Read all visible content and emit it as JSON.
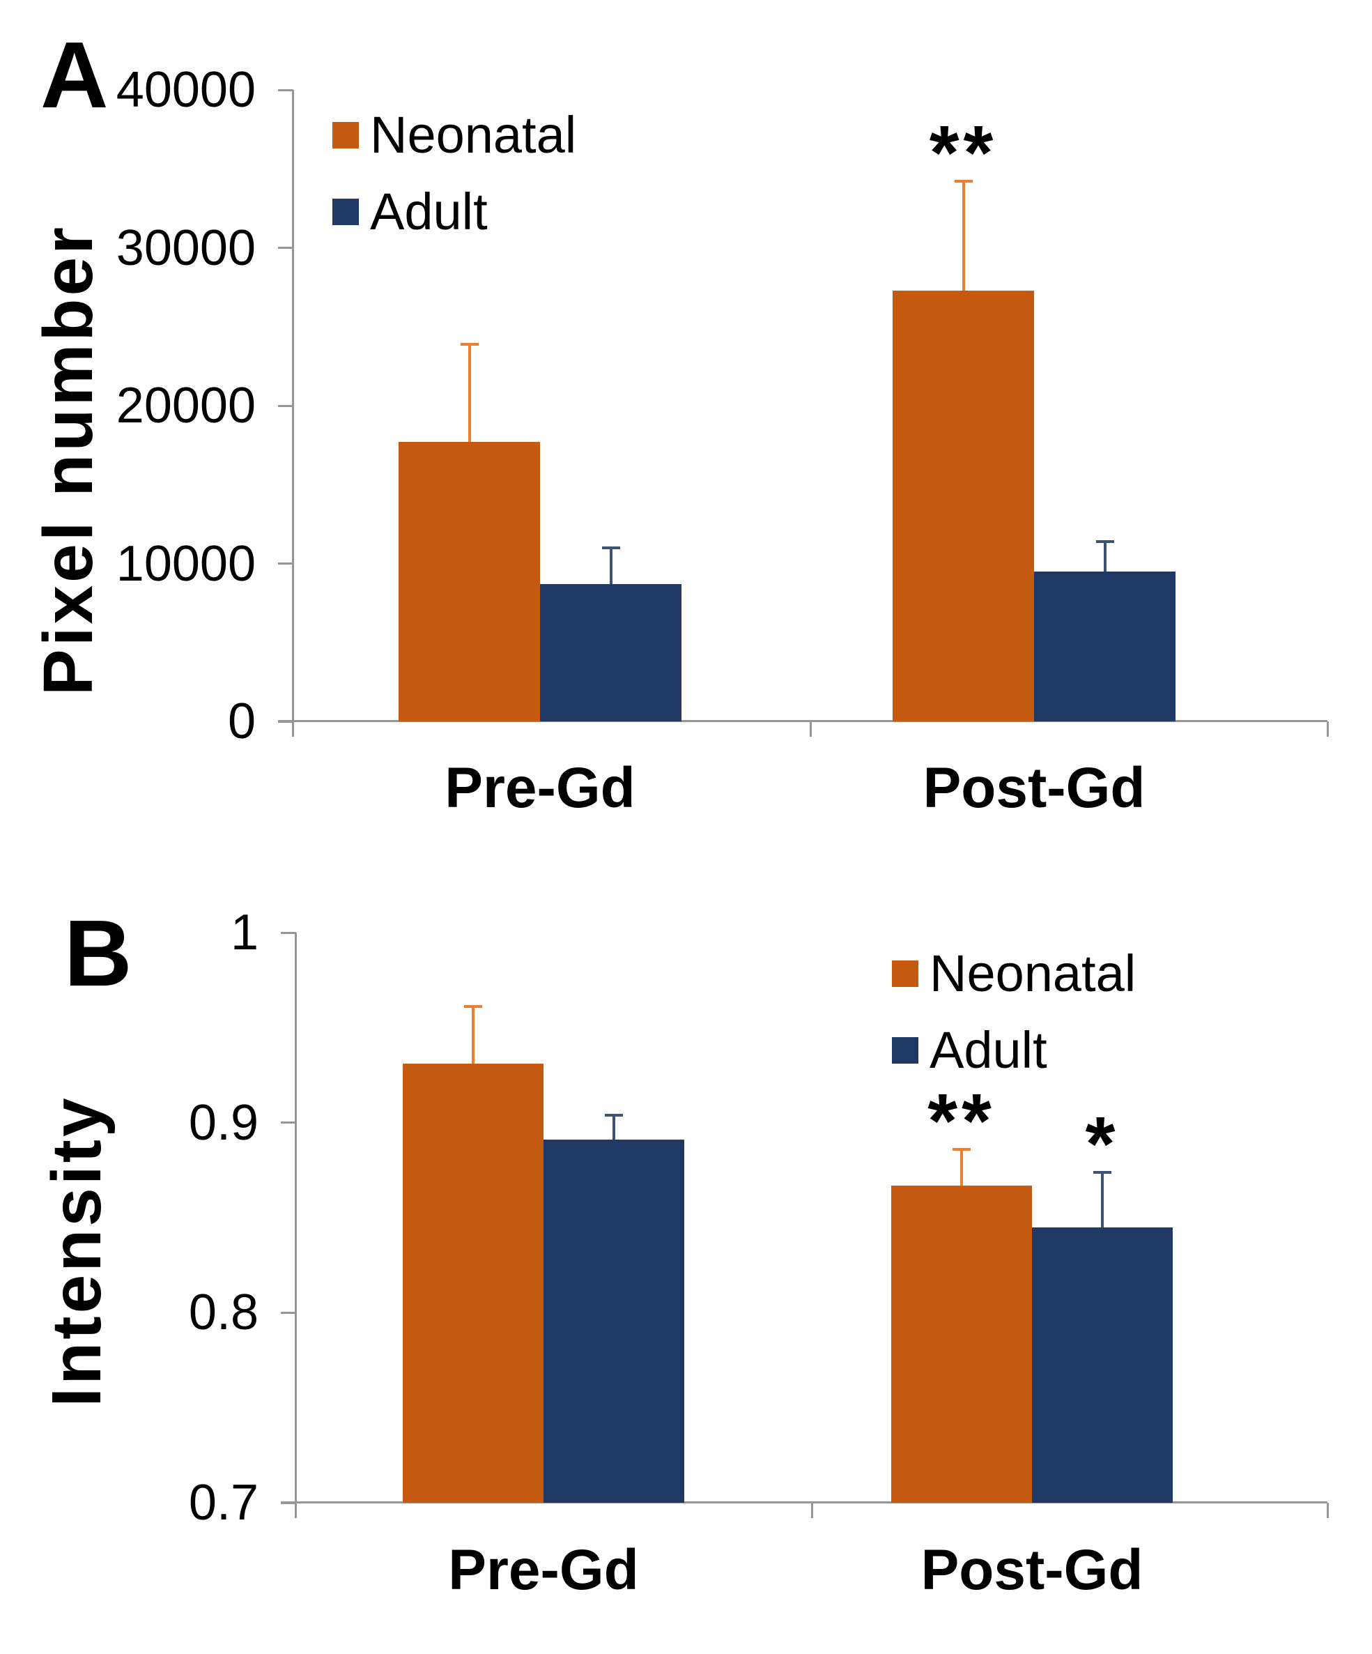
{
  "figure_title": "",
  "colors": {
    "neonatal": "#C55A11",
    "neonatal_error": "#ED7D31",
    "adult": "#1F3864",
    "adult_error": "#3E5273",
    "axis": "#969696",
    "text": "#000000"
  },
  "chart_data": [
    {
      "type": "bar",
      "panel_label": "A",
      "title": "",
      "xlabel": "",
      "ylabel": "Pixel number",
      "categories": [
        "Pre-Gd",
        "Post-Gd"
      ],
      "series": [
        {
          "name": "Neonatal",
          "color": "#C55A11",
          "error_color": "#ED7D31",
          "values": [
            17700,
            27300
          ],
          "errors": [
            6200,
            6900
          ]
        },
        {
          "name": "Adult",
          "color": "#1F3864",
          "error_color": "#3E5273",
          "values": [
            8700,
            9500
          ],
          "errors": [
            2300,
            1900
          ]
        }
      ],
      "ylim": [
        0,
        40000
      ],
      "yticks": [
        {
          "v": 40000,
          "label": "40000"
        },
        {
          "v": 30000,
          "label": "30000"
        },
        {
          "v": 20000,
          "label": "20000"
        },
        {
          "v": 10000,
          "label": "10000"
        },
        {
          "v": 0,
          "label": "0"
        }
      ],
      "grid": false,
      "legend_position": "top-left",
      "annotations": [
        {
          "text": "**",
          "category": 1,
          "series": 0,
          "meaning": "significant difference"
        }
      ]
    },
    {
      "type": "bar",
      "panel_label": "B",
      "title": "",
      "xlabel": "",
      "ylabel": "Intensity",
      "categories": [
        "Pre-Gd",
        "Post-Gd"
      ],
      "series": [
        {
          "name": "Neonatal",
          "color": "#C55A11",
          "error_color": "#ED7D31",
          "values": [
            0.931,
            0.867
          ],
          "errors": [
            0.03,
            0.019
          ]
        },
        {
          "name": "Adult",
          "color": "#1F3864",
          "error_color": "#3E5273",
          "values": [
            0.891,
            0.845
          ],
          "errors": [
            0.013,
            0.029
          ]
        }
      ],
      "ylim": [
        0.7,
        1.0
      ],
      "yticks": [
        {
          "v": 1.0,
          "label": "1"
        },
        {
          "v": 0.9,
          "label": "0.9"
        },
        {
          "v": 0.8,
          "label": "0.8"
        },
        {
          "v": 0.7,
          "label": "0.7"
        }
      ],
      "grid": false,
      "legend_position": "top-right",
      "annotations": [
        {
          "text": "**",
          "category": 1,
          "series": 0,
          "meaning": "significant difference"
        },
        {
          "text": "*",
          "category": 1,
          "series": 1,
          "meaning": "significant difference"
        }
      ]
    }
  ]
}
